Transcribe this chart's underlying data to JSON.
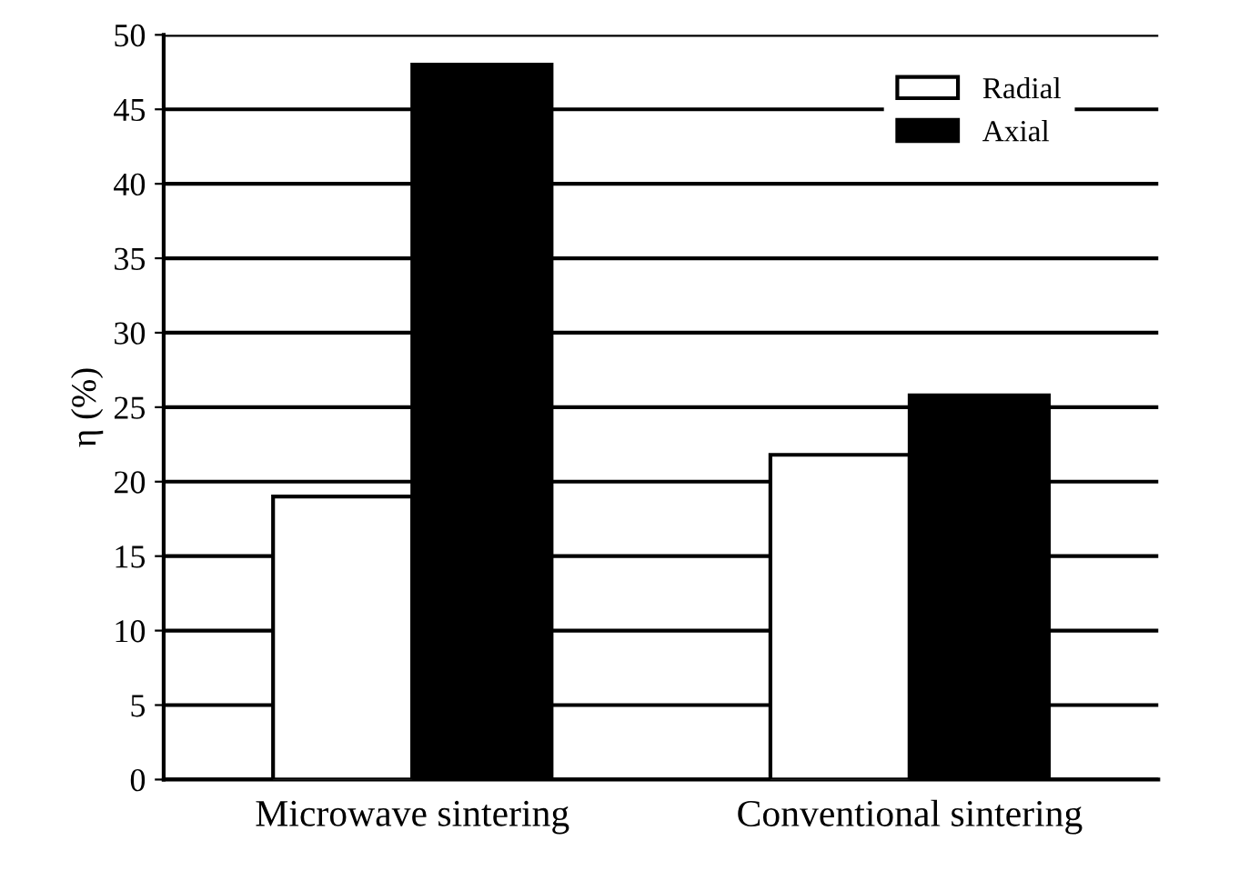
{
  "chart_data": {
    "type": "bar",
    "ylabel": "η (%)",
    "categories": [
      "Microwave sintering",
      "Conventional sintering"
    ],
    "series": [
      {
        "name": "Radial",
        "color": "#ffffff",
        "values": [
          19,
          21.8
        ]
      },
      {
        "name": "Axial",
        "color": "#000000",
        "values": [
          48,
          25.8
        ]
      }
    ],
    "ylim": [
      0,
      50
    ],
    "yticks": [
      0,
      5,
      10,
      15,
      20,
      25,
      30,
      35,
      40,
      45,
      50
    ],
    "grid": "y",
    "legend": "top right"
  }
}
